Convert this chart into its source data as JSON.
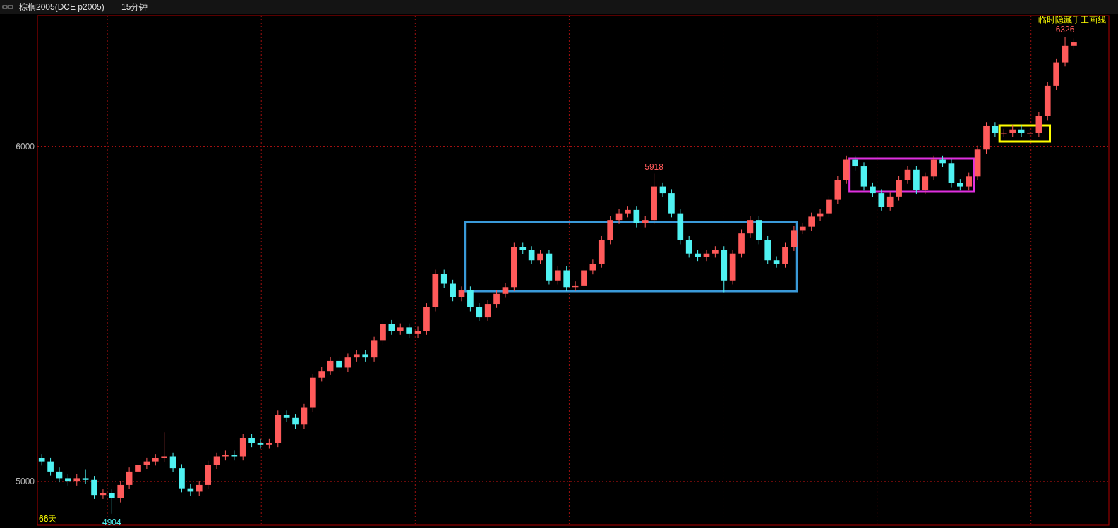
{
  "chart_data": {
    "type": "candlestick",
    "title": "棕榈2005(DCE p2005)",
    "subtitle": "15分钟",
    "categories": [
      null,
      null,
      null,
      null,
      null,
      null,
      null,
      null,
      null,
      null,
      null,
      null,
      null,
      null,
      null,
      null,
      null,
      null,
      null,
      null,
      null,
      null,
      null,
      null,
      null,
      null,
      null,
      null,
      null,
      null,
      null,
      null,
      null,
      null,
      null,
      null,
      null,
      null,
      null,
      null,
      null,
      null,
      null,
      null,
      null,
      null,
      null,
      null,
      null,
      null,
      null,
      null,
      null,
      null,
      null,
      null,
      null,
      null,
      null,
      null,
      null,
      null,
      null,
      null,
      null,
      null,
      null,
      null,
      null,
      null,
      null,
      null,
      null,
      null,
      null,
      null,
      null,
      null,
      null,
      null,
      null,
      null,
      null,
      null,
      null,
      null,
      null,
      null,
      null,
      null,
      null,
      null,
      null,
      null,
      null,
      null,
      null,
      null,
      null,
      null,
      null,
      null,
      null,
      null,
      null,
      null,
      null,
      null,
      null,
      null,
      null,
      null,
      null,
      null,
      null,
      null,
      null,
      null,
      null
    ],
    "ohlc": [
      [
        5070,
        5082,
        5048,
        5060
      ],
      [
        5060,
        5072,
        5018,
        5030
      ],
      [
        5030,
        5042,
        4998,
        5010
      ],
      [
        5010,
        5022,
        4988,
        5000
      ],
      [
        5000,
        5022,
        4988,
        5010
      ],
      [
        5010,
        5035,
        4993,
        5005
      ],
      [
        5005,
        5017,
        4948,
        4960
      ],
      [
        4960,
        4977,
        4948,
        4965
      ],
      [
        4965,
        4977,
        4904,
        4950
      ],
      [
        4950,
        5002,
        4938,
        4990
      ],
      [
        4990,
        5042,
        4978,
        5030
      ],
      [
        5030,
        5062,
        5018,
        5050
      ],
      [
        5050,
        5072,
        5038,
        5060
      ],
      [
        5060,
        5082,
        5048,
        5070
      ],
      [
        5070,
        5147,
        5058,
        5075
      ],
      [
        5075,
        5087,
        5028,
        5040
      ],
      [
        5040,
        5052,
        4968,
        4980
      ],
      [
        4980,
        4992,
        4958,
        4970
      ],
      [
        4970,
        5002,
        4958,
        4990
      ],
      [
        4990,
        5062,
        4978,
        5050
      ],
      [
        5050,
        5087,
        5038,
        5075
      ],
      [
        5075,
        5092,
        5063,
        5080
      ],
      [
        5080,
        5092,
        5063,
        5075
      ],
      [
        5075,
        5142,
        5063,
        5130
      ],
      [
        5130,
        5142,
        5103,
        5115
      ],
      [
        5115,
        5127,
        5098,
        5110
      ],
      [
        5110,
        5127,
        5098,
        5115
      ],
      [
        5115,
        5212,
        5103,
        5200
      ],
      [
        5200,
        5212,
        5178,
        5190
      ],
      [
        5190,
        5202,
        5158,
        5170
      ],
      [
        5170,
        5232,
        5158,
        5220
      ],
      [
        5220,
        5322,
        5208,
        5310
      ],
      [
        5310,
        5342,
        5298,
        5330
      ],
      [
        5330,
        5372,
        5318,
        5360
      ],
      [
        5360,
        5372,
        5328,
        5340
      ],
      [
        5340,
        5382,
        5328,
        5370
      ],
      [
        5370,
        5392,
        5358,
        5380
      ],
      [
        5380,
        5392,
        5358,
        5370
      ],
      [
        5370,
        5432,
        5358,
        5420
      ],
      [
        5420,
        5482,
        5408,
        5470
      ],
      [
        5470,
        5482,
        5438,
        5450
      ],
      [
        5450,
        5472,
        5438,
        5460
      ],
      [
        5460,
        5472,
        5428,
        5440
      ],
      [
        5440,
        5462,
        5428,
        5450
      ],
      [
        5450,
        5532,
        5438,
        5520
      ],
      [
        5520,
        5632,
        5508,
        5620
      ],
      [
        5620,
        5632,
        5578,
        5590
      ],
      [
        5590,
        5602,
        5538,
        5550
      ],
      [
        5550,
        5582,
        5538,
        5570
      ],
      [
        5570,
        5582,
        5508,
        5520
      ],
      [
        5520,
        5532,
        5478,
        5490
      ],
      [
        5490,
        5542,
        5478,
        5530
      ],
      [
        5530,
        5572,
        5518,
        5560
      ],
      [
        5560,
        5592,
        5548,
        5580
      ],
      [
        5580,
        5712,
        5568,
        5700
      ],
      [
        5700,
        5712,
        5678,
        5690
      ],
      [
        5690,
        5702,
        5648,
        5660
      ],
      [
        5660,
        5692,
        5648,
        5680
      ],
      [
        5680,
        5692,
        5588,
        5600
      ],
      [
        5600,
        5642,
        5588,
        5630
      ],
      [
        5630,
        5642,
        5568,
        5580
      ],
      [
        5580,
        5597,
        5568,
        5585
      ],
      [
        5585,
        5642,
        5573,
        5630
      ],
      [
        5630,
        5662,
        5618,
        5650
      ],
      [
        5650,
        5732,
        5638,
        5720
      ],
      [
        5720,
        5792,
        5708,
        5780
      ],
      [
        5780,
        5812,
        5768,
        5800
      ],
      [
        5800,
        5822,
        5788,
        5810
      ],
      [
        5810,
        5822,
        5758,
        5770
      ],
      [
        5770,
        5792,
        5758,
        5780
      ],
      [
        5780,
        5918,
        5768,
        5880
      ],
      [
        5880,
        5892,
        5848,
        5860
      ],
      [
        5860,
        5872,
        5788,
        5800
      ],
      [
        5800,
        5812,
        5708,
        5720
      ],
      [
        5720,
        5732,
        5668,
        5680
      ],
      [
        5680,
        5692,
        5658,
        5670
      ],
      [
        5670,
        5692,
        5658,
        5680
      ],
      [
        5680,
        5702,
        5668,
        5690
      ],
      [
        5690,
        5702,
        5565,
        5600
      ],
      [
        5600,
        5692,
        5588,
        5680
      ],
      [
        5680,
        5752,
        5668,
        5740
      ],
      [
        5740,
        5792,
        5728,
        5780
      ],
      [
        5780,
        5792,
        5708,
        5720
      ],
      [
        5720,
        5732,
        5648,
        5660
      ],
      [
        5660,
        5672,
        5638,
        5650
      ],
      [
        5650,
        5712,
        5638,
        5700
      ],
      [
        5700,
        5762,
        5688,
        5750
      ],
      [
        5750,
        5772,
        5738,
        5760
      ],
      [
        5760,
        5802,
        5748,
        5790
      ],
      [
        5790,
        5812,
        5778,
        5800
      ],
      [
        5800,
        5852,
        5788,
        5840
      ],
      [
        5840,
        5912,
        5828,
        5900
      ],
      [
        5900,
        5972,
        5888,
        5960
      ],
      [
        5960,
        5972,
        5928,
        5940
      ],
      [
        5940,
        5952,
        5868,
        5880
      ],
      [
        5880,
        5892,
        5848,
        5860
      ],
      [
        5860,
        5872,
        5808,
        5820
      ],
      [
        5820,
        5862,
        5808,
        5850
      ],
      [
        5850,
        5912,
        5838,
        5900
      ],
      [
        5900,
        5942,
        5888,
        5930
      ],
      [
        5930,
        5942,
        5858,
        5870
      ],
      [
        5870,
        5922,
        5858,
        5910
      ],
      [
        5910,
        5972,
        5898,
        5960
      ],
      [
        5960,
        5972,
        5938,
        5950
      ],
      [
        5950,
        5962,
        5878,
        5890
      ],
      [
        5890,
        5902,
        5868,
        5880
      ],
      [
        5880,
        5922,
        5868,
        5910
      ],
      [
        5910,
        6002,
        5898,
        5990
      ],
      [
        5990,
        6072,
        5978,
        6060
      ],
      [
        6060,
        6072,
        6028,
        6040
      ],
      [
        6040,
        6052,
        6028,
        6040
      ],
      [
        6040,
        6062,
        6028,
        6050
      ],
      [
        6050,
        6062,
        6028,
        6040
      ],
      [
        6040,
        6052,
        6028,
        6040
      ],
      [
        6040,
        6102,
        6028,
        6090
      ],
      [
        6090,
        6192,
        6078,
        6180
      ],
      [
        6180,
        6262,
        6168,
        6250
      ],
      [
        6250,
        6326,
        6238,
        6300
      ],
      [
        6300,
        6322,
        6288,
        6310
      ]
    ],
    "colors": [
      "#4ff2f2",
      "#4ff2f2",
      "#4ff2f2",
      "#4ff2f2",
      "#ff5a5a",
      "#4ff2f2",
      "#4ff2f2",
      "#ff5a5a",
      "#4ff2f2",
      "#ff5a5a",
      "#ff5a5a",
      "#ff5a5a",
      "#ff5a5a",
      "#ff5a5a",
      "#ff5a5a",
      "#4ff2f2",
      "#4ff2f2",
      "#4ff2f2",
      "#ff5a5a",
      "#ff5a5a",
      "#ff5a5a",
      "#ff5a5a",
      "#4ff2f2",
      "#ff5a5a",
      "#4ff2f2",
      "#4ff2f2",
      "#ff5a5a",
      "#ff5a5a",
      "#4ff2f2",
      "#4ff2f2",
      "#ff5a5a",
      "#ff5a5a",
      "#ff5a5a",
      "#ff5a5a",
      "#4ff2f2",
      "#ff5a5a",
      "#ff5a5a",
      "#4ff2f2",
      "#ff5a5a",
      "#ff5a5a",
      "#4ff2f2",
      "#ff5a5a",
      "#4ff2f2",
      "#ff5a5a",
      "#ff5a5a",
      "#ff5a5a",
      "#4ff2f2",
      "#4ff2f2",
      "#ff5a5a",
      "#4ff2f2",
      "#4ff2f2",
      "#ff5a5a",
      "#ff5a5a",
      "#ff5a5a",
      "#ff5a5a",
      "#4ff2f2",
      "#4ff2f2",
      "#ff5a5a",
      "#4ff2f2",
      "#ff5a5a",
      "#4ff2f2",
      "#ff5a5a",
      "#ff5a5a",
      "#ff5a5a",
      "#ff5a5a",
      "#ff5a5a",
      "#ff5a5a",
      "#ff5a5a",
      "#4ff2f2",
      "#ff5a5a",
      "#ff5a5a",
      "#4ff2f2",
      "#4ff2f2",
      "#4ff2f2",
      "#4ff2f2",
      "#4ff2f2",
      "#ff5a5a",
      "#ff5a5a",
      "#4ff2f2",
      "#ff5a5a",
      "#ff5a5a",
      "#ff5a5a",
      "#4ff2f2",
      "#4ff2f2",
      "#4ff2f2",
      "#ff5a5a",
      "#ff5a5a",
      "#ff5a5a",
      "#ff5a5a",
      "#ff5a5a",
      "#ff5a5a",
      "#ff5a5a",
      "#ff5a5a",
      "#4ff2f2",
      "#4ff2f2",
      "#4ff2f2",
      "#4ff2f2",
      "#ff5a5a",
      "#ff5a5a",
      "#ff5a5a",
      "#4ff2f2",
      "#ff5a5a",
      "#ff5a5a",
      "#4ff2f2",
      "#4ff2f2",
      "#4ff2f2",
      "#ff5a5a",
      "#ff5a5a",
      "#ff5a5a",
      "#4ff2f2",
      "#ff5a5a",
      "#ff5a5a",
      "#4ff2f2",
      "#ff5a5a",
      "#ff5a5a",
      "#ff5a5a",
      "#ff5a5a",
      "#ff5a5a",
      "#ff5a5a"
    ],
    "ylim": [
      4870,
      6390
    ],
    "yticks": [
      5000,
      6000
    ],
    "grid": true,
    "tick_labels": "y",
    "annotations": [
      "66天",
      "临时隐藏手工画线",
      {
        "text": "4904",
        "y": 4904
      },
      {
        "text": "5918",
        "y": 5918
      },
      {
        "text": "6326",
        "y": 6326
      }
    ]
  }
}
